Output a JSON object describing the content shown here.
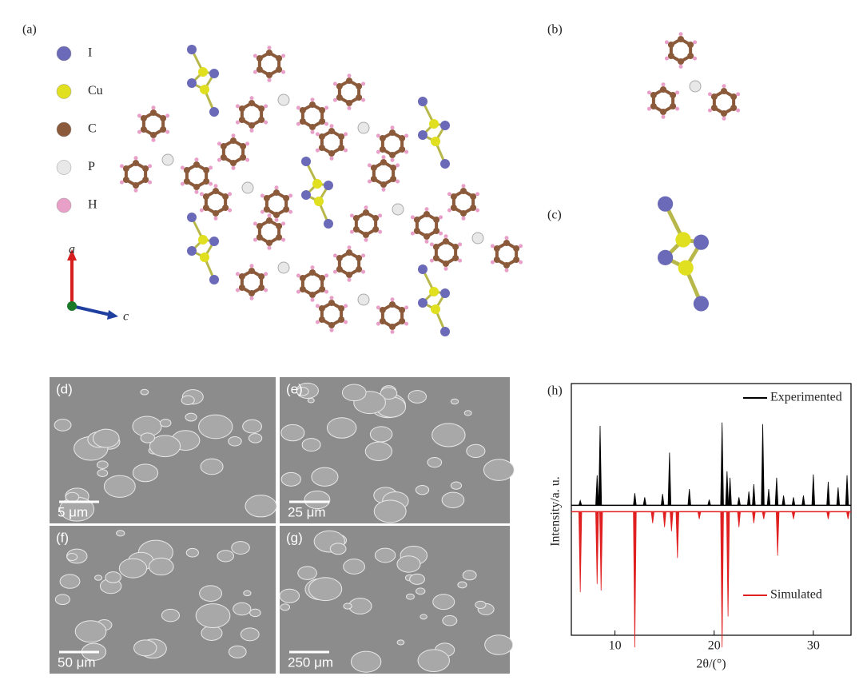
{
  "panels": {
    "a": {
      "label": "(a)",
      "atoms": [
        "I",
        "Cu",
        "C",
        "P",
        "H"
      ],
      "axis_labels": [
        "a",
        "c"
      ]
    },
    "b": {
      "label": "(b)"
    },
    "c": {
      "label": "(c)"
    },
    "d": {
      "label": "(d)",
      "scale": "5 μm"
    },
    "e": {
      "label": "(e)",
      "scale": "25 μm"
    },
    "f": {
      "label": "(f)",
      "scale": "50 μm"
    },
    "g": {
      "label": "(g)",
      "scale": "250 μm"
    }
  },
  "chart_data": {
    "type": "peaks",
    "label": "(h)",
    "x_label": "2θ/(°)",
    "y_label": "Intensity/a. u.",
    "xlim": [
      5.6,
      33.8
    ],
    "xticks": [
      10,
      20,
      30
    ],
    "ylim": [
      -160,
      150
    ],
    "series": [
      {
        "name": "Experimented",
        "color": "#000000",
        "x": [
          6.5,
          8.2,
          8.5,
          12,
          13,
          14.8,
          15.5,
          17.5,
          19.5,
          20.8,
          21.3,
          21.6,
          22.5,
          23.5,
          24,
          24.9,
          25.5,
          26.3,
          27,
          28,
          29,
          30,
          31.5,
          32.5,
          33.4
        ],
        "values": [
          6,
          37,
          98,
          15,
          10,
          14,
          65,
          20,
          7,
          102,
          42,
          34,
          10,
          17,
          26,
          100,
          20,
          34,
          12,
          10,
          12,
          38,
          29,
          22,
          37
        ]
      },
      {
        "name": "Simulated",
        "color": "#e02020",
        "x": [
          6.5,
          8.2,
          8.6,
          12,
          13.8,
          15,
          15.7,
          16.3,
          18.5,
          20.8,
          21.4,
          22.5,
          24,
          25,
          26.4,
          28,
          31.5,
          33.5
        ],
        "values": [
          -99,
          -89,
          -97,
          -167,
          -14,
          -19,
          -24,
          -57,
          -9,
          -167,
          -129,
          -19,
          -14,
          -9,
          -54,
          -9,
          -9,
          -9
        ]
      }
    ]
  }
}
